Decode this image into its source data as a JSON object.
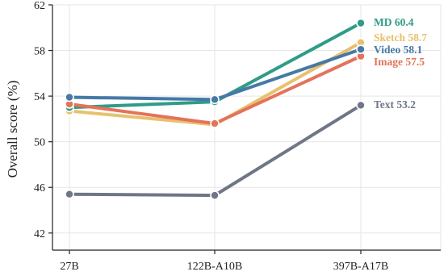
{
  "chart_data": {
    "type": "line",
    "title": "",
    "xlabel": "",
    "ylabel": "Overall score (%)",
    "categories": [
      "27B",
      "122B-A10B",
      "397B-A17B"
    ],
    "ylim": [
      40.5,
      62
    ],
    "yticks": [
      42,
      46,
      50,
      54,
      58,
      62
    ],
    "ytick_labels": [
      "42",
      "46",
      "50",
      "54",
      "58",
      "62"
    ],
    "grid": true,
    "legend": "none",
    "series": [
      {
        "name": "Text",
        "values": [
          45.4,
          45.3,
          53.2
        ],
        "color": "#6e7687",
        "end_label": "Text 53.2"
      },
      {
        "name": "Sketch",
        "values": [
          52.7,
          51.5,
          58.7
        ],
        "color": "#e8c16e",
        "end_label": "Sketch 58.7"
      },
      {
        "name": "MD",
        "values": [
          53.0,
          53.5,
          60.4
        ],
        "color": "#2e9c87",
        "end_label": "MD 60.4"
      },
      {
        "name": "Image",
        "values": [
          53.3,
          51.6,
          57.5
        ],
        "color": "#e3735a",
        "end_label": "Image 57.5"
      },
      {
        "name": "Video",
        "values": [
          53.9,
          53.7,
          58.1
        ],
        "color": "#4679a6",
        "end_label": "Video 58.1"
      }
    ]
  }
}
